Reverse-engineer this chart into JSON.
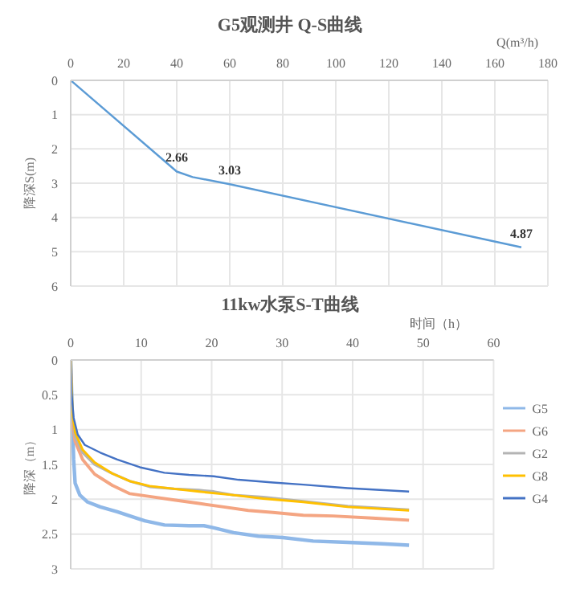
{
  "chart_data": [
    {
      "type": "line",
      "title": "G5观测井 Q-S曲线",
      "xlabel": "Q(m³/h)",
      "ylabel": "降深S(m)",
      "xlim": [
        0,
        180
      ],
      "xticks": [
        0,
        20,
        40,
        60,
        80,
        100,
        120,
        140,
        160,
        180
      ],
      "ylim": [
        6,
        0
      ],
      "yticks": [
        0,
        1,
        2,
        3,
        4,
        5,
        6
      ],
      "grid": true,
      "legend": false,
      "marker": "none",
      "line_style": "solid",
      "series": [
        {
          "color": "#5b9bd5",
          "x": [
            0,
            40,
            46,
            60,
            170
          ],
          "values": [
            0,
            2.66,
            2.82,
            3.03,
            4.87
          ],
          "value_labels": [
            null,
            "2.66",
            null,
            "3.03",
            "4.87"
          ]
        }
      ]
    },
    {
      "type": "line",
      "title": "11kw水泵S-T曲线",
      "xlabel": "时间（h）",
      "ylabel": "降深（m）",
      "xlim": [
        0,
        60
      ],
      "xticks": [
        0,
        10,
        20,
        30,
        40,
        50,
        60
      ],
      "ylim": [
        3,
        0
      ],
      "yticks": [
        0,
        0.5,
        1,
        1.5,
        2,
        2.5,
        3
      ],
      "grid": true,
      "legend": "right",
      "marker": "none",
      "line_style": "solid",
      "series": [
        {
          "name": "G5",
          "color": "#8fb8e8",
          "x": [
            0,
            0.42,
            0.63,
            1.3,
            2.4,
            4.2,
            6.6,
            8.4,
            10.5,
            13.3,
            16.8,
            18.9,
            20.3,
            23.1,
            26.6,
            30.1,
            34.4,
            39.3,
            44.2,
            48
          ],
          "values": [
            0,
            1.43,
            1.77,
            1.94,
            2.04,
            2.11,
            2.18,
            2.24,
            2.31,
            2.37,
            2.38,
            2.38,
            2.41,
            2.48,
            2.53,
            2.55,
            2.6,
            2.62,
            2.64,
            2.66
          ]
        },
        {
          "name": "G6",
          "color": "#f4a582",
          "x": [
            0,
            0.14,
            0.63,
            1.7,
            3.4,
            5.9,
            8.4,
            11.2,
            14.7,
            18.2,
            21.7,
            25.2,
            28.7,
            33,
            37.2,
            42.8,
            48
          ],
          "values": [
            0,
            0.83,
            1.17,
            1.43,
            1.64,
            1.8,
            1.92,
            1.96,
            2.01,
            2.06,
            2.11,
            2.16,
            2.19,
            2.23,
            2.24,
            2.27,
            2.3
          ]
        },
        {
          "name": "G2",
          "color": "#b4b4b4",
          "x": [
            0,
            0.28,
            0.63,
            1.7,
            3.4,
            5.9,
            8.4,
            11.2,
            14.7,
            18.2,
            20.3,
            23.1,
            27.3,
            33,
            39.3,
            48
          ],
          "values": [
            0,
            0.83,
            1.1,
            1.33,
            1.5,
            1.63,
            1.74,
            1.82,
            1.85,
            1.87,
            1.89,
            1.94,
            1.97,
            2.03,
            2.1,
            2.15
          ]
        },
        {
          "name": "G8",
          "color": "#ffc000",
          "x": [
            0,
            0.28,
            0.63,
            1.7,
            3.4,
            5.9,
            8.4,
            11.2,
            14.7,
            18.2,
            23.1,
            27.3,
            33,
            39.3,
            48
          ],
          "values": [
            0,
            0.8,
            1.04,
            1.29,
            1.47,
            1.63,
            1.74,
            1.81,
            1.85,
            1.89,
            1.94,
            1.99,
            2.04,
            2.11,
            2.16
          ]
        },
        {
          "name": "G4",
          "color": "#4472c4",
          "x": [
            0,
            0.14,
            0.42,
            1,
            2,
            4.2,
            6.6,
            9.8,
            13.3,
            16.8,
            20.3,
            23.8,
            28.7,
            33,
            39.3,
            48
          ],
          "values": [
            0,
            0.49,
            0.83,
            1.07,
            1.22,
            1.33,
            1.43,
            1.54,
            1.62,
            1.65,
            1.67,
            1.72,
            1.76,
            1.79,
            1.84,
            1.89
          ]
        }
      ]
    }
  ]
}
